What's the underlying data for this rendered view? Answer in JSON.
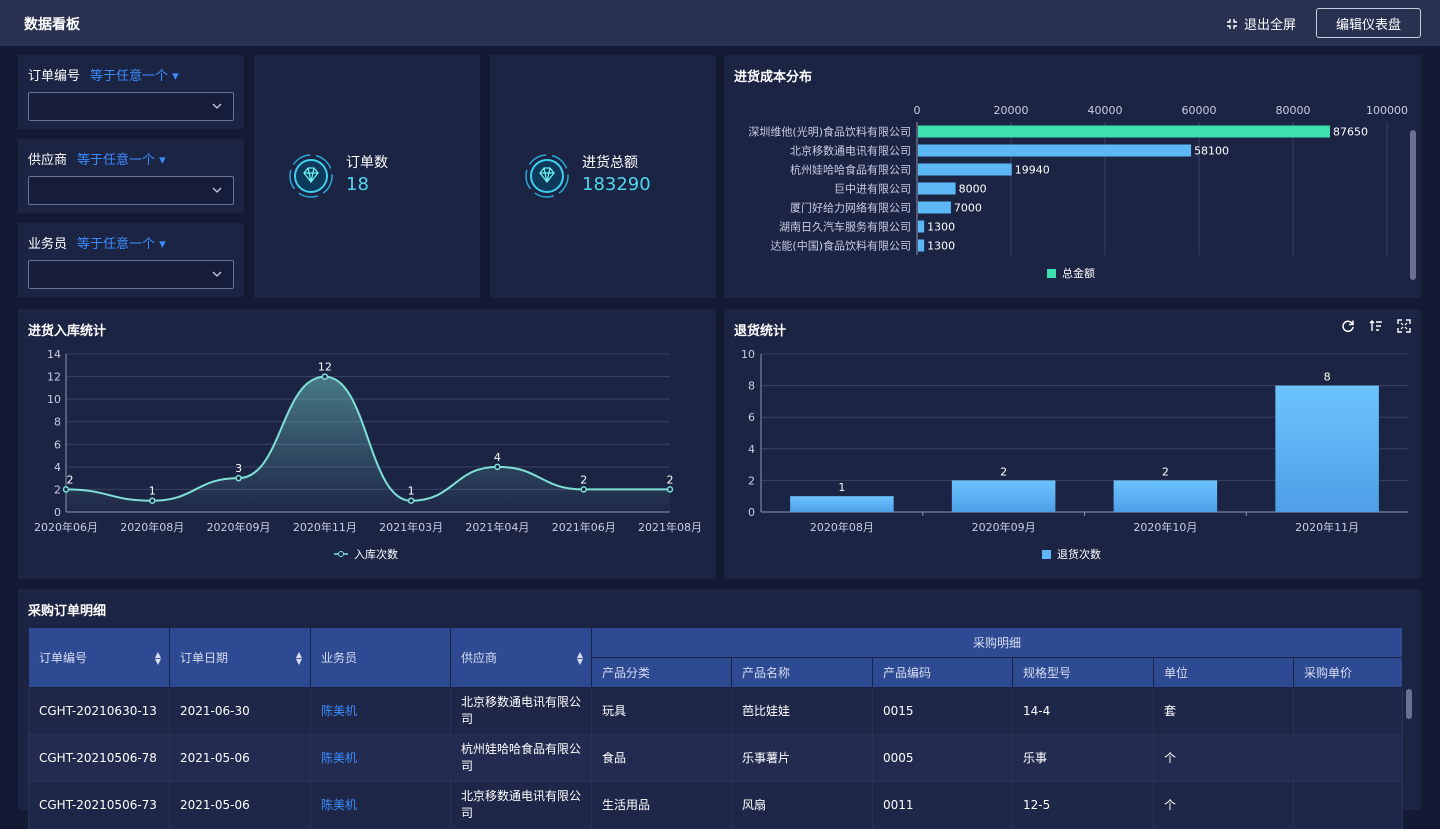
{
  "header": {
    "title": "数据看板",
    "exit_fullscreen": "退出全屏",
    "edit_dashboard": "编辑仪表盘"
  },
  "filters": [
    {
      "label": "订单编号",
      "op": "等于任意一个"
    },
    {
      "label": "供应商",
      "op": "等于任意一个"
    },
    {
      "label": "业务员",
      "op": "等于任意一个"
    }
  ],
  "kpis": [
    {
      "label": "订单数",
      "value": "18"
    },
    {
      "label": "进货总额",
      "value": "183290"
    }
  ],
  "cost_chart": {
    "title": "进货成本分布",
    "chart_data": {
      "type": "bar",
      "orientation": "horizontal",
      "categories": [
        "深圳维他(光明)食品饮料有限公司",
        "北京移数通电讯有限公司",
        "杭州娃哈哈食品有限公司",
        "巨中进有限公司",
        "厦门好给力网络有限公司",
        "湖南日久汽车服务有限公司",
        "达能(中国)食品饮料有限公司"
      ],
      "values": [
        87650,
        58100,
        19940,
        8000,
        7000,
        1300,
        1300
      ],
      "value_labels": [
        "87650",
        "58100",
        "19940",
        "8000",
        "7000",
        "1300",
        "1300"
      ],
      "xlim": [
        0,
        100000
      ],
      "ticks": [
        "0",
        "20000",
        "40000",
        "60000",
        "80000",
        "100000"
      ],
      "legend": "总金额",
      "colors": {
        "first": "#3ee0b0",
        "rest": "#5cb8f5"
      }
    }
  },
  "inbound_chart": {
    "title": "进货入库统计",
    "chart_data": {
      "type": "line",
      "categories": [
        "2020年06月",
        "2020年08月",
        "2020年09月",
        "2020年11月",
        "2021年03月",
        "2021年04月",
        "2021年06月",
        "2021年08月"
      ],
      "values": [
        2,
        1,
        3,
        12,
        1,
        4,
        2,
        2
      ],
      "value_labels": [
        "2",
        "1",
        "3",
        "12",
        "1",
        "4",
        "2",
        "2"
      ],
      "ylim": [
        0,
        14
      ],
      "yticks": [
        "0",
        "2",
        "4",
        "6",
        "8",
        "10",
        "12",
        "14"
      ],
      "legend": "入库次数",
      "color": "#7ee0d6"
    }
  },
  "return_chart": {
    "title": "退货统计",
    "chart_data": {
      "type": "bar",
      "categories": [
        "2020年08月",
        "2020年09月",
        "2020年10月",
        "2020年11月"
      ],
      "values": [
        1,
        2,
        2,
        8
      ],
      "value_labels": [
        "1",
        "2",
        "2",
        "8"
      ],
      "ylim": [
        0,
        10
      ],
      "yticks": [
        "0",
        "2",
        "4",
        "6",
        "8",
        "10"
      ],
      "legend": "退货次数",
      "color": "#5cb8f5"
    }
  },
  "table": {
    "title": "采购订单明细",
    "group_header": "采购明细",
    "columns": [
      "订单编号",
      "订单日期",
      "业务员",
      "供应商"
    ],
    "sub_columns": [
      "产品分类",
      "产品名称",
      "产品编码",
      "规格型号",
      "单位",
      "采购单价"
    ],
    "rows": [
      [
        "CGHT-20210630-13",
        "2021-06-30",
        "陈美机",
        "北京移数通电讯有限公司",
        "玩具",
        "芭比娃娃",
        "0015",
        "14-4",
        "套",
        ""
      ],
      [
        "CGHT-20210506-78",
        "2021-05-06",
        "陈美机",
        "杭州娃哈哈食品有限公司",
        "食品",
        "乐事薯片",
        "0005",
        "乐事",
        "个",
        ""
      ],
      [
        "CGHT-20210506-73",
        "2021-05-06",
        "陈美机",
        "北京移数通电讯有限公司",
        "生活用品",
        "风扇",
        "0011",
        "12-5",
        "个",
        ""
      ]
    ]
  }
}
